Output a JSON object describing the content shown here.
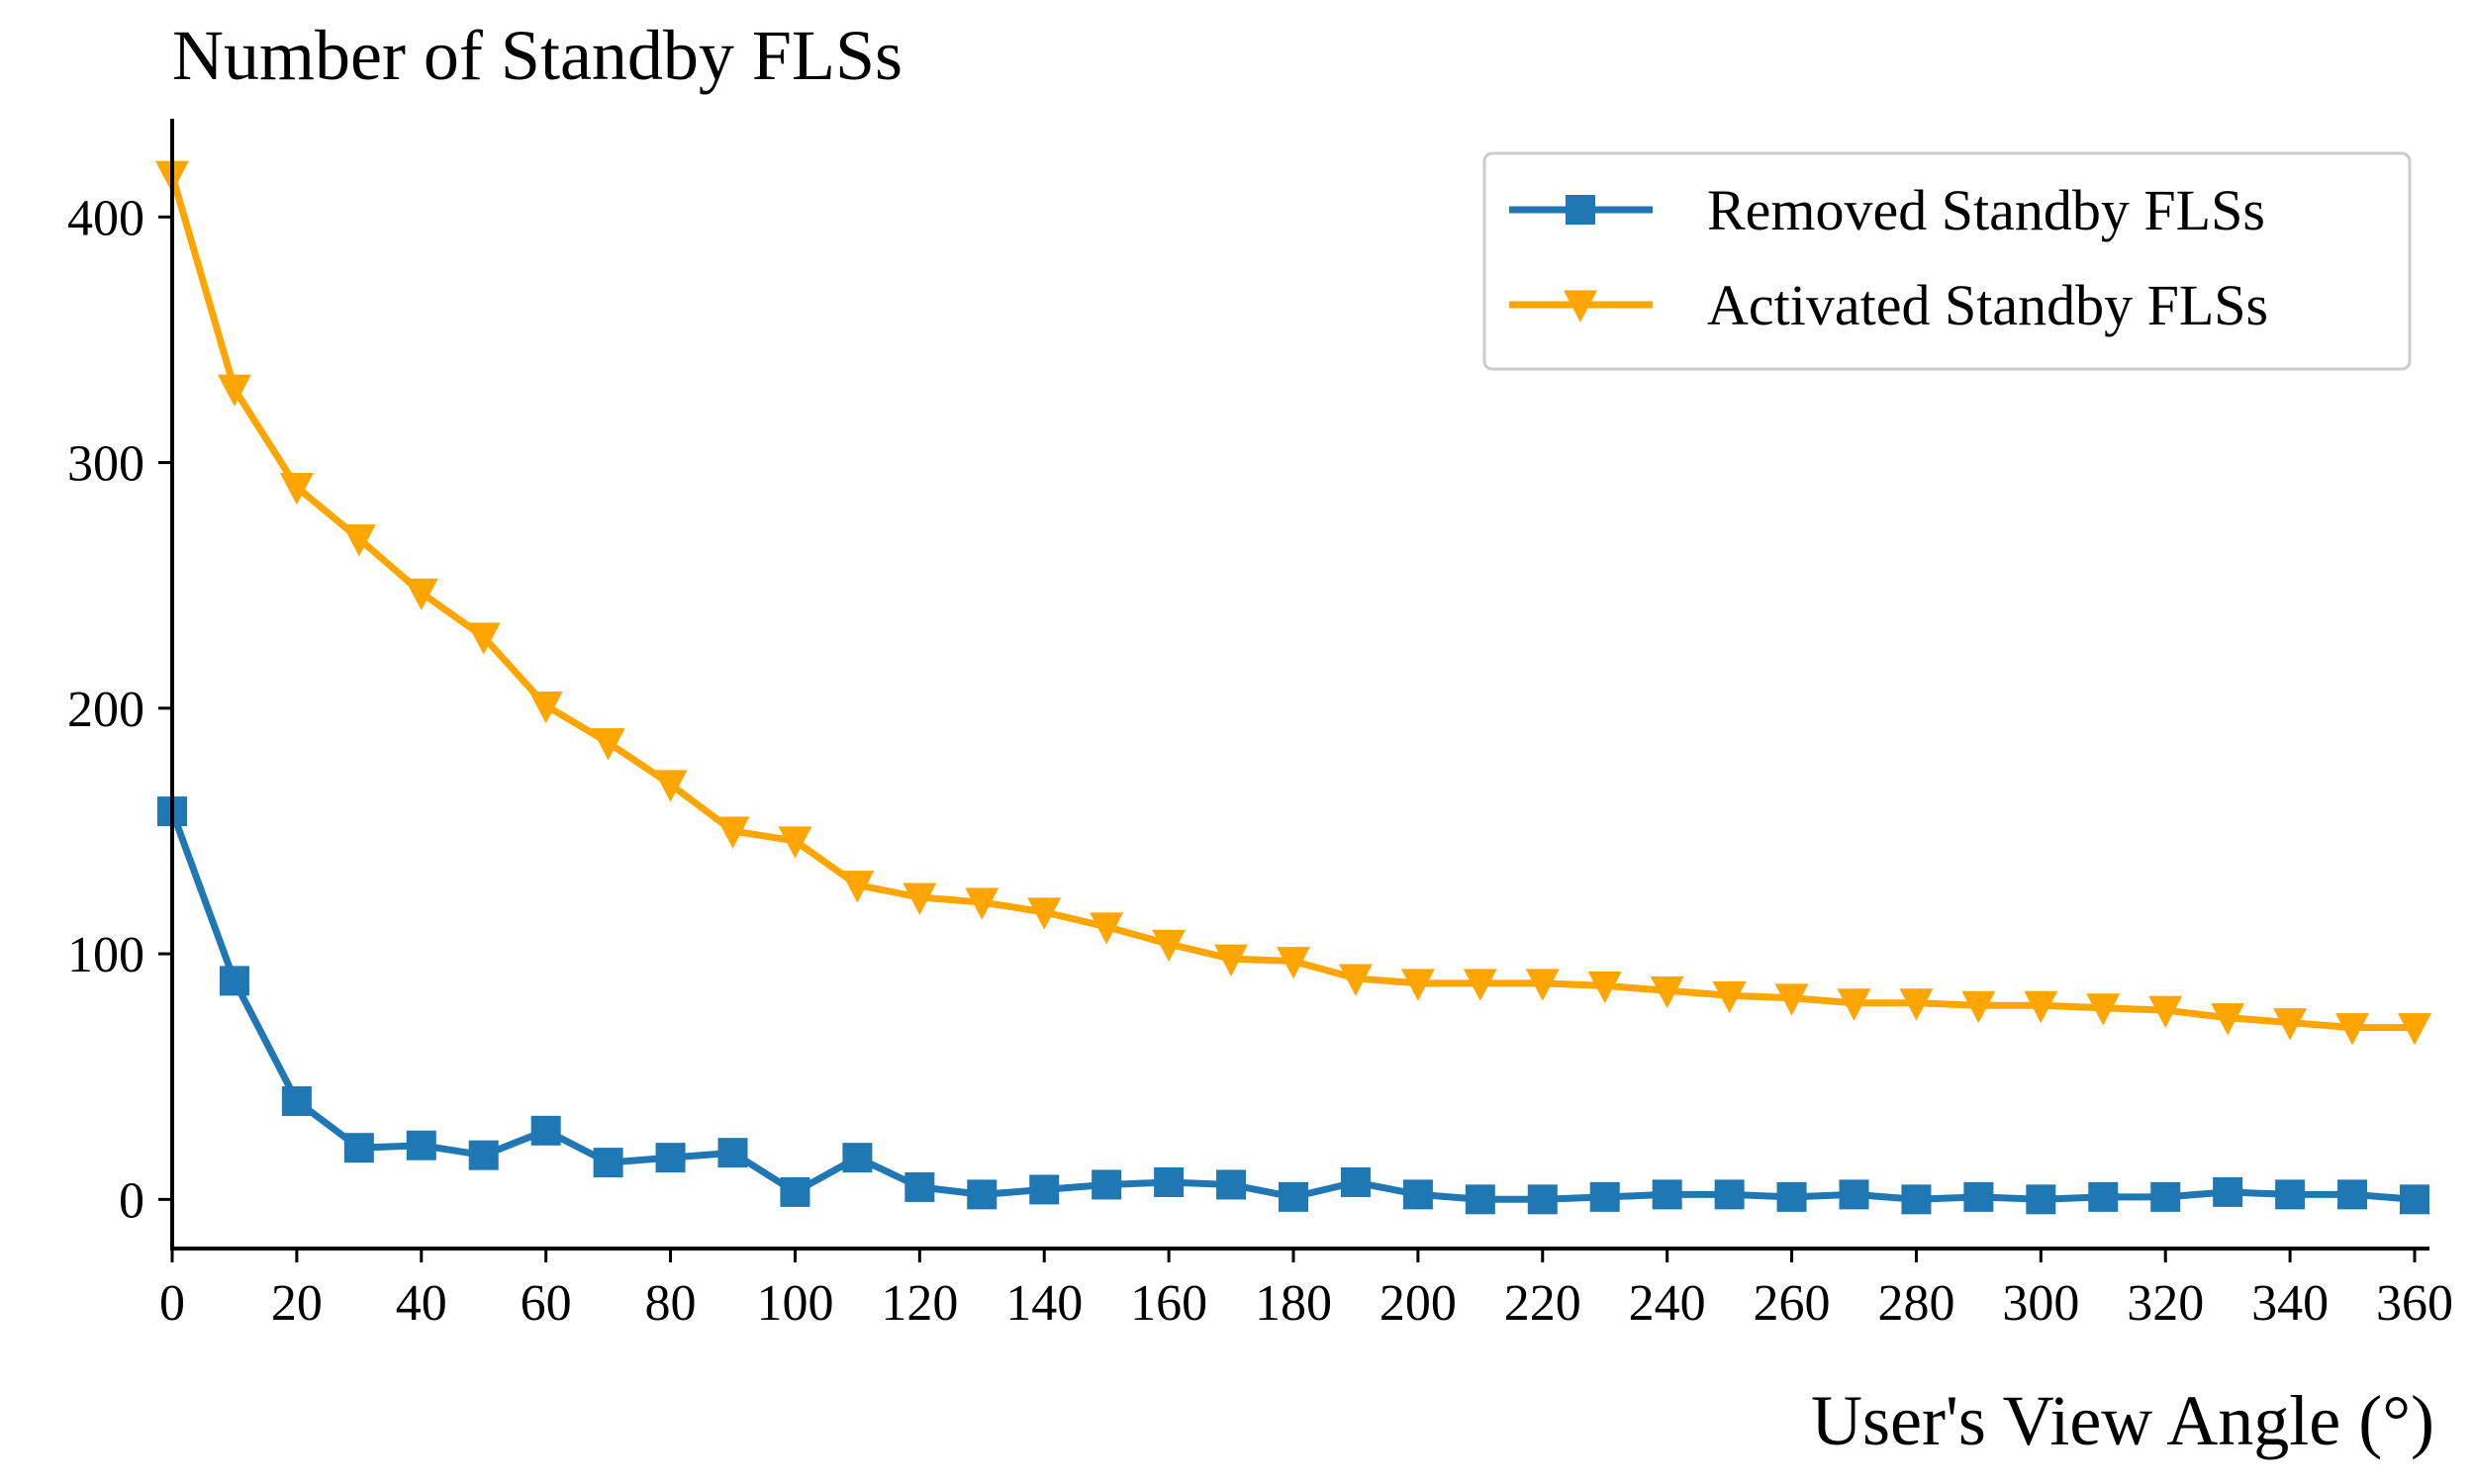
{
  "chart_data": {
    "type": "line",
    "title": "",
    "ylabel": "Number of Standby FLSs",
    "xlabel": "User's View Angle (°)",
    "xlim": [
      0,
      360
    ],
    "ylim": [
      -20,
      440
    ],
    "xticks": [
      "0",
      "20",
      "40",
      "60",
      "80",
      "100",
      "120",
      "140",
      "160",
      "180",
      "200",
      "220",
      "240",
      "260",
      "280",
      "300",
      "320",
      "340",
      "360"
    ],
    "yticks": [
      "0",
      "100",
      "200",
      "300",
      "400"
    ],
    "grid": false,
    "legend_position": "top-right",
    "x": [
      0,
      10,
      20,
      30,
      40,
      50,
      60,
      70,
      80,
      90,
      100,
      110,
      120,
      130,
      140,
      150,
      160,
      170,
      180,
      190,
      200,
      210,
      220,
      230,
      240,
      250,
      260,
      270,
      280,
      290,
      300,
      310,
      320,
      330,
      340,
      350,
      360
    ],
    "series": [
      {
        "name": "Removed Standby FLSs",
        "color": "#1f77b4",
        "marker": "square",
        "values": [
          158,
          89,
          40,
          21,
          22,
          18,
          28,
          15,
          17,
          19,
          3,
          17,
          5,
          2,
          4,
          6,
          7,
          6,
          1,
          7,
          2,
          0,
          0,
          1,
          2,
          2,
          1,
          2,
          0,
          1,
          0,
          1,
          1,
          3,
          2,
          2,
          0
        ]
      },
      {
        "name": "Activated Standby FLSs",
        "color": "#ffa500",
        "marker": "triangle-down",
        "values": [
          417,
          330,
          290,
          269,
          247,
          229,
          201,
          186,
          169,
          150,
          146,
          128,
          123,
          121,
          117,
          111,
          104,
          98,
          97,
          90,
          88,
          88,
          88,
          87,
          85,
          83,
          82,
          80,
          80,
          79,
          79,
          78,
          77,
          74,
          72,
          70,
          70
        ]
      }
    ]
  }
}
